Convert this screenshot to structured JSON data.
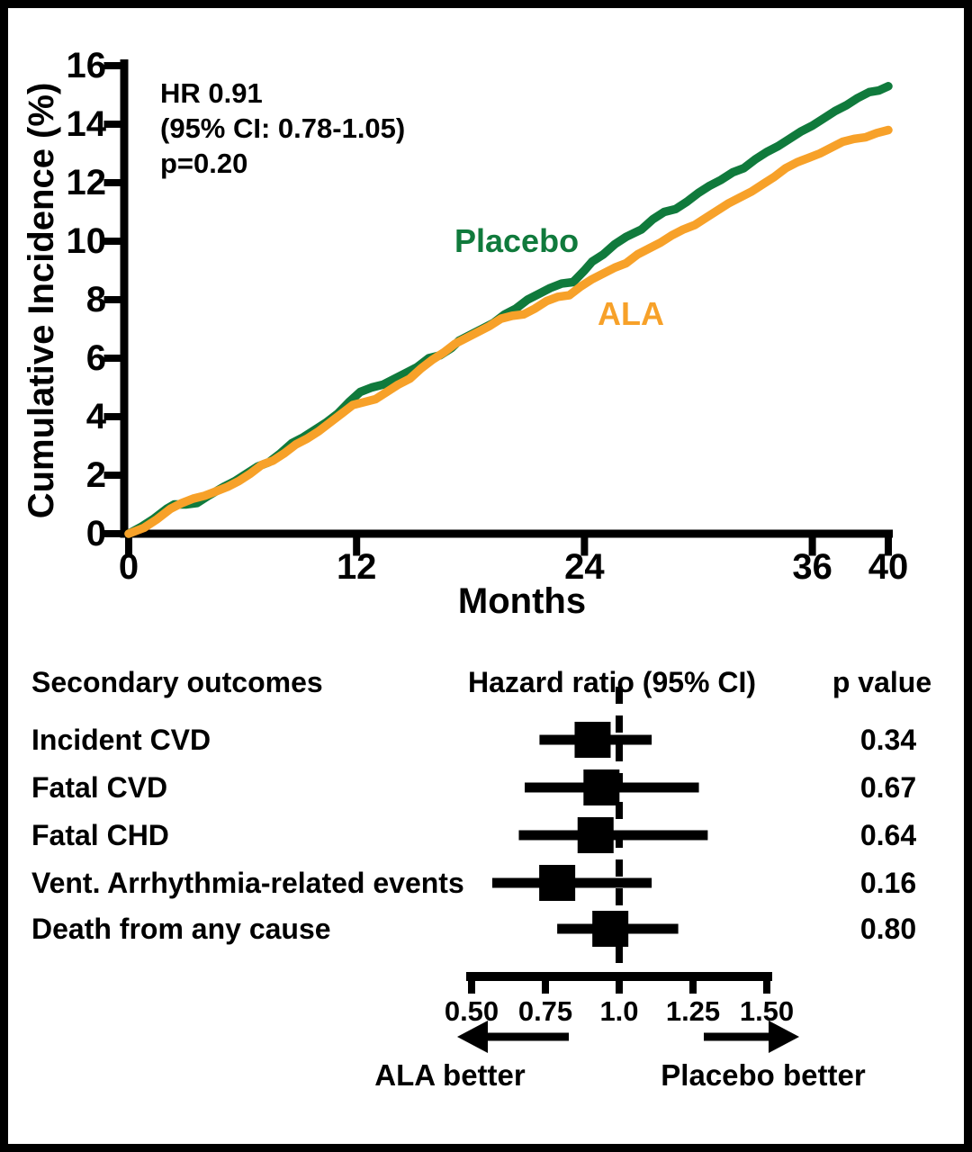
{
  "figure": {
    "background": "#ffffff",
    "border_color": "#000000",
    "axis_color": "#000000"
  },
  "chart_data": [
    {
      "type": "line",
      "title": "",
      "xlabel": "Months",
      "ylabel": "Cumulative Incidence (%)",
      "xlim": [
        0,
        40
      ],
      "ylim": [
        0,
        16
      ],
      "xticks": [
        0,
        12,
        24,
        36,
        40
      ],
      "yticks": [
        0,
        2,
        4,
        6,
        8,
        10,
        12,
        14,
        16
      ],
      "grid": false,
      "annotation": [
        "HR 0.91",
        "(95% CI: 0.78-1.05)",
        "p=0.20"
      ],
      "series": [
        {
          "name": "Placebo",
          "color": "#107a3c",
          "points": [
            [
              0,
              0
            ],
            [
              0.7,
              0.25
            ],
            [
              1.3,
              0.5
            ],
            [
              2,
              0.85
            ],
            [
              2.4,
              1
            ],
            [
              3,
              1
            ],
            [
              3.6,
              1.05
            ],
            [
              4.2,
              1.3
            ],
            [
              5,
              1.6
            ],
            [
              5.6,
              1.8
            ],
            [
              6.2,
              2.05
            ],
            [
              6.8,
              2.3
            ],
            [
              7.4,
              2.45
            ],
            [
              8,
              2.75
            ],
            [
              8.6,
              3.1
            ],
            [
              9.2,
              3.3
            ],
            [
              9.8,
              3.55
            ],
            [
              10.4,
              3.8
            ],
            [
              11,
              4.1
            ],
            [
              11.6,
              4.5
            ],
            [
              12.2,
              4.85
            ],
            [
              12.8,
              5
            ],
            [
              13.4,
              5.1
            ],
            [
              14,
              5.3
            ],
            [
              14.6,
              5.5
            ],
            [
              15.2,
              5.7
            ],
            [
              15.8,
              6
            ],
            [
              16.4,
              6.1
            ],
            [
              17,
              6.35
            ],
            [
              17.4,
              6.6
            ],
            [
              18,
              6.8
            ],
            [
              18.6,
              7
            ],
            [
              19.2,
              7.2
            ],
            [
              19.8,
              7.5
            ],
            [
              20.4,
              7.7
            ],
            [
              21,
              8
            ],
            [
              21.6,
              8.2
            ],
            [
              22.2,
              8.4
            ],
            [
              22.8,
              8.55
            ],
            [
              23.4,
              8.6
            ],
            [
              24,
              9
            ],
            [
              24.4,
              9.3
            ],
            [
              25,
              9.55
            ],
            [
              25.6,
              9.9
            ],
            [
              26.2,
              10.15
            ],
            [
              27,
              10.4
            ],
            [
              27.6,
              10.75
            ],
            [
              28.2,
              11
            ],
            [
              28.8,
              11.1
            ],
            [
              29.4,
              11.35
            ],
            [
              30,
              11.65
            ],
            [
              30.6,
              11.9
            ],
            [
              31.2,
              12.1
            ],
            [
              31.8,
              12.35
            ],
            [
              32.4,
              12.5
            ],
            [
              33,
              12.8
            ],
            [
              33.6,
              13.05
            ],
            [
              34.2,
              13.25
            ],
            [
              34.8,
              13.5
            ],
            [
              35.4,
              13.75
            ],
            [
              36,
              13.95
            ],
            [
              36.6,
              14.2
            ],
            [
              37.2,
              14.45
            ],
            [
              37.8,
              14.65
            ],
            [
              38.4,
              14.9
            ],
            [
              39,
              15.1
            ],
            [
              39.5,
              15.15
            ],
            [
              40,
              15.3
            ]
          ]
        },
        {
          "name": "ALA",
          "color": "#f7a129",
          "points": [
            [
              0,
              0
            ],
            [
              0.8,
              0.2
            ],
            [
              1.5,
              0.5
            ],
            [
              2.2,
              0.85
            ],
            [
              2.8,
              1.05
            ],
            [
              3.4,
              1.2
            ],
            [
              4,
              1.3
            ],
            [
              4.6,
              1.45
            ],
            [
              5.2,
              1.6
            ],
            [
              5.8,
              1.8
            ],
            [
              6.4,
              2.05
            ],
            [
              7,
              2.35
            ],
            [
              7.6,
              2.5
            ],
            [
              8.2,
              2.75
            ],
            [
              8.8,
              3.05
            ],
            [
              9.4,
              3.25
            ],
            [
              10,
              3.5
            ],
            [
              10.6,
              3.8
            ],
            [
              11.2,
              4.1
            ],
            [
              11.8,
              4.4
            ],
            [
              12.4,
              4.5
            ],
            [
              13,
              4.6
            ],
            [
              13.6,
              4.85
            ],
            [
              14.2,
              5.1
            ],
            [
              14.8,
              5.3
            ],
            [
              15.4,
              5.65
            ],
            [
              16,
              5.95
            ],
            [
              16.6,
              6.2
            ],
            [
              17.2,
              6.5
            ],
            [
              17.8,
              6.7
            ],
            [
              18.4,
              6.9
            ],
            [
              19,
              7.1
            ],
            [
              19.6,
              7.35
            ],
            [
              20.2,
              7.45
            ],
            [
              20.8,
              7.5
            ],
            [
              21.4,
              7.7
            ],
            [
              22,
              7.95
            ],
            [
              22.6,
              8.1
            ],
            [
              23.2,
              8.15
            ],
            [
              23.8,
              8.45
            ],
            [
              24.4,
              8.7
            ],
            [
              25,
              8.9
            ],
            [
              25.6,
              9.1
            ],
            [
              26.2,
              9.25
            ],
            [
              26.8,
              9.55
            ],
            [
              27.4,
              9.75
            ],
            [
              28,
              9.95
            ],
            [
              28.6,
              10.2
            ],
            [
              29.2,
              10.4
            ],
            [
              29.8,
              10.55
            ],
            [
              30.4,
              10.8
            ],
            [
              31,
              11.05
            ],
            [
              31.6,
              11.3
            ],
            [
              32.2,
              11.5
            ],
            [
              32.8,
              11.7
            ],
            [
              33.4,
              11.95
            ],
            [
              34,
              12.2
            ],
            [
              34.6,
              12.5
            ],
            [
              35.2,
              12.7
            ],
            [
              35.8,
              12.85
            ],
            [
              36.4,
              13
            ],
            [
              37,
              13.2
            ],
            [
              37.6,
              13.4
            ],
            [
              38.2,
              13.5
            ],
            [
              38.8,
              13.55
            ],
            [
              39.4,
              13.7
            ],
            [
              40,
              13.8
            ]
          ]
        }
      ]
    },
    {
      "type": "forest",
      "col_headers": [
        "Secondary outcomes",
        "Hazard ratio (95% CI)",
        "p value"
      ],
      "rows": [
        {
          "label": "Incident CVD",
          "hr": 0.91,
          "ci_low": 0.73,
          "ci_high": 1.11,
          "p": "0.34"
        },
        {
          "label": "Fatal CVD",
          "hr": 0.94,
          "ci_low": 0.68,
          "ci_high": 1.27,
          "p": "0.67"
        },
        {
          "label": "Fatal CHD",
          "hr": 0.92,
          "ci_low": 0.66,
          "ci_high": 1.3,
          "p": "0.64"
        },
        {
          "label": "Vent. Arrhythmia-related events",
          "hr": 0.79,
          "ci_low": 0.57,
          "ci_high": 1.11,
          "p": "0.16"
        },
        {
          "label": "Death from any cause",
          "hr": 0.97,
          "ci_low": 0.79,
          "ci_high": 1.2,
          "p": "0.80"
        }
      ],
      "axis_ticks": [
        "0.50",
        "0.75",
        "1.0",
        "1.25",
        "1.50"
      ],
      "axis_tick_values": [
        0.5,
        0.75,
        1.0,
        1.25,
        1.5
      ],
      "axis_range": [
        0.5,
        1.5
      ],
      "ref_line": 1.0,
      "direction_labels": {
        "left": "ALA better",
        "right": "Placebo better"
      },
      "marker_color": "#000000"
    }
  ]
}
